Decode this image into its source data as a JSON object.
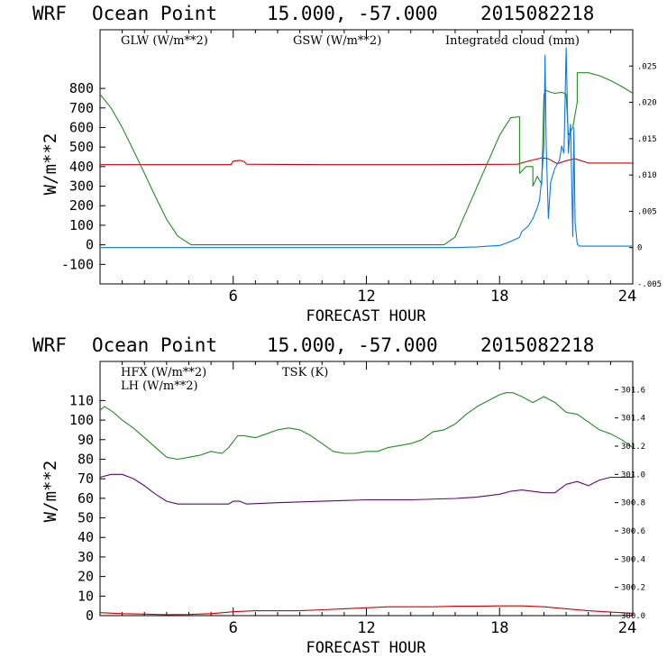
{
  "colors": {
    "glw": "#cc0000",
    "gsw": "#228b22",
    "cloud": "#0a7ae0",
    "hfx": "#cc0000",
    "lh": "#228b22",
    "tsk": "#5a0a6e",
    "axis": "#000000"
  },
  "chart_data": [
    {
      "type": "line",
      "title_parts": [
        "WRF",
        "Ocean Point",
        "15.000, -57.000",
        "2015082218"
      ],
      "xlabel": "FORECAST HOUR",
      "ylabel": "W/m**2",
      "xlim": [
        0,
        24
      ],
      "ylim": [
        -200,
        1100
      ],
      "x_ticks": [
        "6",
        "12",
        "18",
        "24"
      ],
      "y_ticks": [
        "800",
        "700",
        "600",
        "500",
        "400",
        "300",
        "200",
        "100",
        "0",
        "-100"
      ],
      "y2lim": [
        -0.005,
        0.03
      ],
      "y2_ticks": [
        ".025",
        ".020",
        ".015",
        ".010",
        ".005",
        "0",
        "-.005"
      ],
      "legend": [
        "GLW (W/m**2)",
        "GSW (W/m**2)",
        "Integrated cloud (mm)"
      ],
      "series": [
        {
          "name": "GLW (W/m**2)",
          "axis": "left",
          "x": [
            0,
            5.9,
            6.0,
            6.3,
            6.5,
            6.6,
            10,
            15,
            18.8,
            19.2,
            19.9,
            20.2,
            20.6,
            21.0,
            21.4,
            22,
            24
          ],
          "y": [
            410,
            410,
            428,
            432,
            425,
            412,
            410,
            410,
            412,
            425,
            445,
            440,
            415,
            430,
            440,
            418,
            418
          ]
        },
        {
          "name": "GSW (W/m**2)",
          "axis": "left",
          "x": [
            0,
            0.5,
            1,
            1.5,
            2,
            2.5,
            3,
            3.5,
            4.1,
            15.5,
            16,
            16.5,
            17,
            17.5,
            18,
            18.5,
            18.9,
            18.9,
            19.2,
            19.5,
            19.5,
            19.7,
            19.9,
            20.0,
            20.1,
            20.3,
            20.5,
            20.8,
            21.0,
            21.1,
            21.3,
            21.5,
            21.5,
            22,
            22.5,
            23,
            23.5,
            24
          ],
          "y": [
            770,
            700,
            600,
            485,
            365,
            245,
            130,
            45,
            0,
            0,
            40,
            170,
            300,
            430,
            560,
            650,
            655,
            365,
            400,
            400,
            300,
            350,
            310,
            770,
            790,
            780,
            775,
            780,
            770,
            560,
            600,
            730,
            880,
            880,
            865,
            840,
            810,
            775
          ]
        },
        {
          "name": "Integrated cloud (mm)",
          "axis": "right",
          "x": [
            0,
            16,
            17,
            17.5,
            18,
            18.3,
            18.6,
            18.9,
            19.0,
            19.3,
            19.5,
            19.7,
            19.8,
            19.9,
            20.0,
            20.05,
            20.1,
            20.2,
            20.3,
            20.5,
            20.7,
            20.8,
            20.9,
            21.0,
            21.1,
            21.2,
            21.3,
            21.35,
            21.4,
            21.5,
            21.6,
            24
          ],
          "y": [
            0,
            0,
            0.0001,
            0.0002,
            0.0003,
            0.0006,
            0.001,
            0.0014,
            0.0022,
            0.003,
            0.004,
            0.0055,
            0.0065,
            0.0095,
            0.014,
            0.0265,
            0.014,
            0.004,
            0.009,
            0.011,
            0.012,
            0.014,
            0.013,
            0.0275,
            0.013,
            0.017,
            0.0015,
            0.0165,
            0.0035,
            0.0005,
            0.0002,
            0.0002
          ]
        }
      ]
    },
    {
      "type": "line",
      "title_parts": [
        "WRF",
        "Ocean Point",
        "15.000, -57.000",
        "2015082218"
      ],
      "xlabel": "FORECAST HOUR",
      "ylabel": "W/m**2",
      "xlim": [
        0,
        24
      ],
      "ylim": [
        0,
        130
      ],
      "x_ticks": [
        "6",
        "12",
        "18",
        "24"
      ],
      "y_ticks": [
        "110",
        "100",
        "90",
        "80",
        "70",
        "60",
        "50",
        "40",
        "30",
        "20",
        "10",
        "0"
      ],
      "y2lim": [
        300.0,
        301.8
      ],
      "y2_ticks": [
        "301.6",
        "301.4",
        "301.2",
        "301.0",
        "300.8",
        "300.6",
        "300.4",
        "300.2",
        "300.0"
      ],
      "legend": [
        "HFX (W/m**2)",
        "LH (W/m**2)",
        "TSK (K)"
      ],
      "series": [
        {
          "name": "HFX (W/m**2)",
          "axis": "left",
          "x": [
            0,
            1,
            2,
            3,
            4,
            5,
            6,
            7,
            8,
            9,
            10,
            11,
            12,
            13,
            14,
            15,
            16,
            17,
            18,
            19,
            20,
            21,
            22,
            23,
            24
          ],
          "y": [
            1.5,
            1,
            0.8,
            0.5,
            0.6,
            1,
            2,
            2.5,
            2.5,
            2.5,
            3,
            3.5,
            4,
            4.5,
            4.5,
            4.5,
            4.8,
            4.8,
            5,
            5,
            4.5,
            3.5,
            2.5,
            1.8,
            1.2
          ]
        },
        {
          "name": "LH (W/m**2)",
          "axis": "left",
          "x": [
            0,
            0.2,
            0.6,
            1,
            1.5,
            2,
            2.5,
            3,
            3.5,
            4,
            4.5,
            5,
            5.5,
            5.8,
            6.2,
            6.5,
            7,
            7.5,
            8,
            8.5,
            9,
            9.5,
            10,
            10.5,
            11,
            11.5,
            12,
            12.5,
            13,
            13.5,
            14,
            14.5,
            15,
            15.5,
            16,
            16.5,
            17,
            17.5,
            18,
            18.3,
            18.6,
            19,
            19.5,
            20,
            20.5,
            21,
            21.5,
            22,
            22.5,
            23,
            23.5,
            24
          ],
          "y": [
            105,
            107,
            104,
            100,
            96,
            91,
            86,
            81,
            80,
            81,
            82,
            84,
            83,
            86,
            92,
            92,
            91,
            93,
            95,
            96,
            95,
            92,
            88,
            84,
            83,
            83,
            84,
            84,
            86,
            87,
            88,
            90,
            94,
            95,
            98,
            103,
            107,
            110,
            113,
            114,
            114,
            112,
            109,
            112,
            109,
            104,
            103,
            99,
            95,
            93,
            90,
            86
          ]
        },
        {
          "name": "TSK (K)",
          "axis": "right",
          "x": [
            0,
            0.5,
            1,
            1.5,
            2,
            2.5,
            3,
            3.5,
            4,
            5,
            5.8,
            6,
            6.3,
            6.6,
            8,
            10,
            12,
            14,
            16,
            17,
            18,
            18.5,
            19,
            20,
            20.5,
            21,
            21.5,
            22,
            22.5,
            23,
            23.5,
            24
          ],
          "y": [
            300.98,
            301.0,
            301.0,
            300.97,
            300.92,
            300.86,
            300.81,
            300.79,
            300.79,
            300.79,
            300.79,
            300.81,
            300.81,
            300.79,
            300.8,
            300.81,
            300.82,
            300.82,
            300.83,
            300.84,
            300.86,
            300.88,
            300.89,
            300.87,
            300.87,
            300.93,
            300.95,
            300.92,
            300.96,
            300.98,
            300.98,
            300.98
          ]
        }
      ]
    }
  ]
}
